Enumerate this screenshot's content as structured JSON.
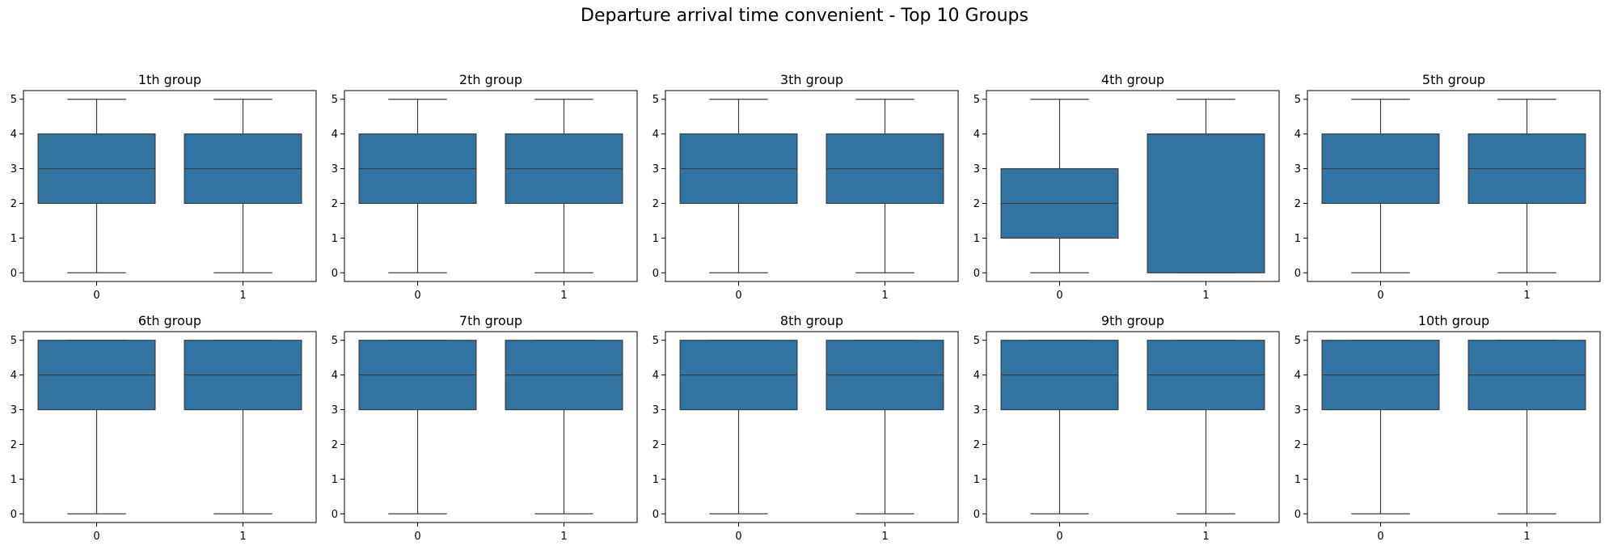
{
  "figure": {
    "title": "Departure arrival time convenient - Top 10 Groups",
    "box_color": "#3274a1",
    "edge_color": "#3d3d3d"
  },
  "chart_data": [
    {
      "type": "box",
      "title": "1th group",
      "categories": [
        "0",
        "1"
      ],
      "ylim": [
        -0.25,
        5.25
      ],
      "yticks": [
        0,
        1,
        2,
        3,
        4,
        5
      ],
      "boxes": [
        {
          "category": "0",
          "whislo": 0,
          "q1": 2,
          "median": 3,
          "q3": 4,
          "whishi": 5
        },
        {
          "category": "1",
          "whislo": 0,
          "q1": 2,
          "median": 3,
          "q3": 4,
          "whishi": 5
        }
      ]
    },
    {
      "type": "box",
      "title": "2th group",
      "categories": [
        "0",
        "1"
      ],
      "ylim": [
        -0.25,
        5.25
      ],
      "yticks": [
        0,
        1,
        2,
        3,
        4,
        5
      ],
      "boxes": [
        {
          "category": "0",
          "whislo": 0,
          "q1": 2,
          "median": 3,
          "q3": 4,
          "whishi": 5
        },
        {
          "category": "1",
          "whislo": 0,
          "q1": 2,
          "median": 3,
          "q3": 4,
          "whishi": 5
        }
      ]
    },
    {
      "type": "box",
      "title": "3th group",
      "categories": [
        "0",
        "1"
      ],
      "ylim": [
        -0.25,
        5.25
      ],
      "yticks": [
        0,
        1,
        2,
        3,
        4,
        5
      ],
      "boxes": [
        {
          "category": "0",
          "whislo": 0,
          "q1": 2,
          "median": 3,
          "q3": 4,
          "whishi": 5
        },
        {
          "category": "1",
          "whislo": 0,
          "q1": 2,
          "median": 3,
          "q3": 4,
          "whishi": 5
        }
      ]
    },
    {
      "type": "box",
      "title": "4th group",
      "categories": [
        "0",
        "1"
      ],
      "ylim": [
        -0.25,
        5.25
      ],
      "yticks": [
        0,
        1,
        2,
        3,
        4,
        5
      ],
      "boxes": [
        {
          "category": "0",
          "whislo": 0,
          "q1": 1,
          "median": 2,
          "q3": 3,
          "whishi": 5
        },
        {
          "category": "1",
          "whislo": 0,
          "q1": 0,
          "median": 4,
          "q3": 4,
          "whishi": 5
        }
      ]
    },
    {
      "type": "box",
      "title": "5th group",
      "categories": [
        "0",
        "1"
      ],
      "ylim": [
        -0.25,
        5.25
      ],
      "yticks": [
        0,
        1,
        2,
        3,
        4,
        5
      ],
      "boxes": [
        {
          "category": "0",
          "whislo": 0,
          "q1": 2,
          "median": 3,
          "q3": 4,
          "whishi": 5
        },
        {
          "category": "1",
          "whislo": 0,
          "q1": 2,
          "median": 3,
          "q3": 4,
          "whishi": 5
        }
      ]
    },
    {
      "type": "box",
      "title": "6th group",
      "categories": [
        "0",
        "1"
      ],
      "ylim": [
        -0.25,
        5.25
      ],
      "yticks": [
        0,
        1,
        2,
        3,
        4,
        5
      ],
      "boxes": [
        {
          "category": "0",
          "whislo": 0,
          "q1": 3,
          "median": 4,
          "q3": 5,
          "whishi": 5
        },
        {
          "category": "1",
          "whislo": 0,
          "q1": 3,
          "median": 4,
          "q3": 5,
          "whishi": 5
        }
      ]
    },
    {
      "type": "box",
      "title": "7th group",
      "categories": [
        "0",
        "1"
      ],
      "ylim": [
        -0.25,
        5.25
      ],
      "yticks": [
        0,
        1,
        2,
        3,
        4,
        5
      ],
      "boxes": [
        {
          "category": "0",
          "whislo": 0,
          "q1": 3,
          "median": 4,
          "q3": 5,
          "whishi": 5
        },
        {
          "category": "1",
          "whislo": 0,
          "q1": 3,
          "median": 4,
          "q3": 5,
          "whishi": 5
        }
      ]
    },
    {
      "type": "box",
      "title": "8th group",
      "categories": [
        "0",
        "1"
      ],
      "ylim": [
        -0.25,
        5.25
      ],
      "yticks": [
        0,
        1,
        2,
        3,
        4,
        5
      ],
      "boxes": [
        {
          "category": "0",
          "whislo": 0,
          "q1": 3,
          "median": 4,
          "q3": 5,
          "whishi": 5
        },
        {
          "category": "1",
          "whislo": 0,
          "q1": 3,
          "median": 4,
          "q3": 5,
          "whishi": 5
        }
      ]
    },
    {
      "type": "box",
      "title": "9th group",
      "categories": [
        "0",
        "1"
      ],
      "ylim": [
        -0.25,
        5.25
      ],
      "yticks": [
        0,
        1,
        2,
        3,
        4,
        5
      ],
      "boxes": [
        {
          "category": "0",
          "whislo": 0,
          "q1": 3,
          "median": 4,
          "q3": 5,
          "whishi": 5
        },
        {
          "category": "1",
          "whislo": 0,
          "q1": 3,
          "median": 4,
          "q3": 5,
          "whishi": 5
        }
      ]
    },
    {
      "type": "box",
      "title": "10th group",
      "categories": [
        "0",
        "1"
      ],
      "ylim": [
        -0.25,
        5.25
      ],
      "yticks": [
        0,
        1,
        2,
        3,
        4,
        5
      ],
      "boxes": [
        {
          "category": "0",
          "whislo": 0,
          "q1": 3,
          "median": 4,
          "q3": 5,
          "whishi": 5
        },
        {
          "category": "1",
          "whislo": 0,
          "q1": 3,
          "median": 4,
          "q3": 5,
          "whishi": 5
        }
      ]
    }
  ]
}
